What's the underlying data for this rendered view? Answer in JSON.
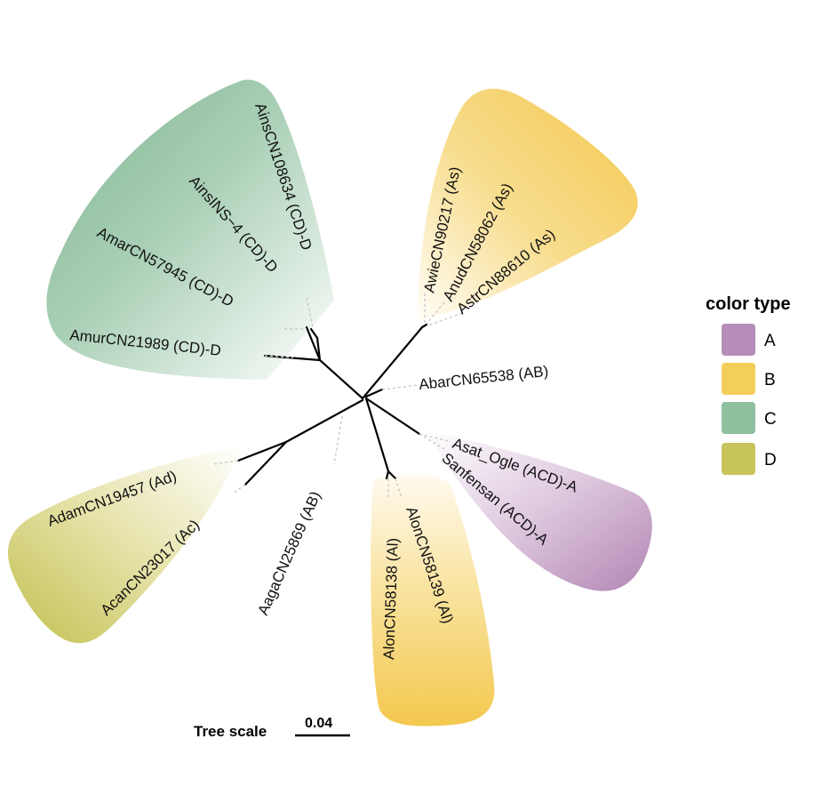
{
  "tips": {
    "ains_cn108634": "AinsCN108634 (CD)-D",
    "ains_ins4": "AinsINS−4 (CD)-D",
    "amar_cn57945": "AmarCN57945 (CD)-D",
    "amur_cn21989": "AmurCN21989 (CD)-D",
    "awie_cn90217": "AwieCN90217 (As)",
    "anud_cn58062": "AnudCN58062 (As)",
    "astr_cn88610": "AstrCN88610 (As)",
    "abar_cn65538": "AbarCN65538 (AB)",
    "asat_ogle": "Asat_Ogle (ACD)-A",
    "sanfensan": "Sanfensan (ACD)-A",
    "alon_cn58139": "AlonCN58139 (Al)",
    "alon_cn58138": "AlonCN58138 (Al)",
    "aaga_cn25869": "AagaCN25869 (AB)",
    "acan_cn23017": "AcanCN23017 (Ac)",
    "adam_cn19457": "AdamCN19457 (Ad)"
  },
  "legend": {
    "title": "color type",
    "items": [
      {
        "label": "A",
        "color": "#b68cb8"
      },
      {
        "label": "B",
        "color": "#f4ce5a"
      },
      {
        "label": "C",
        "color": "#8ebf9f"
      },
      {
        "label": "D",
        "color": "#c6c45a"
      }
    ]
  },
  "scale_bar": {
    "title": "Tree scale",
    "value": "0.04"
  },
  "clade_colors": {
    "A": "#b68cb8",
    "B": "#f4ce5a",
    "C": "#8ebf9f",
    "D": "#c6c45a"
  }
}
